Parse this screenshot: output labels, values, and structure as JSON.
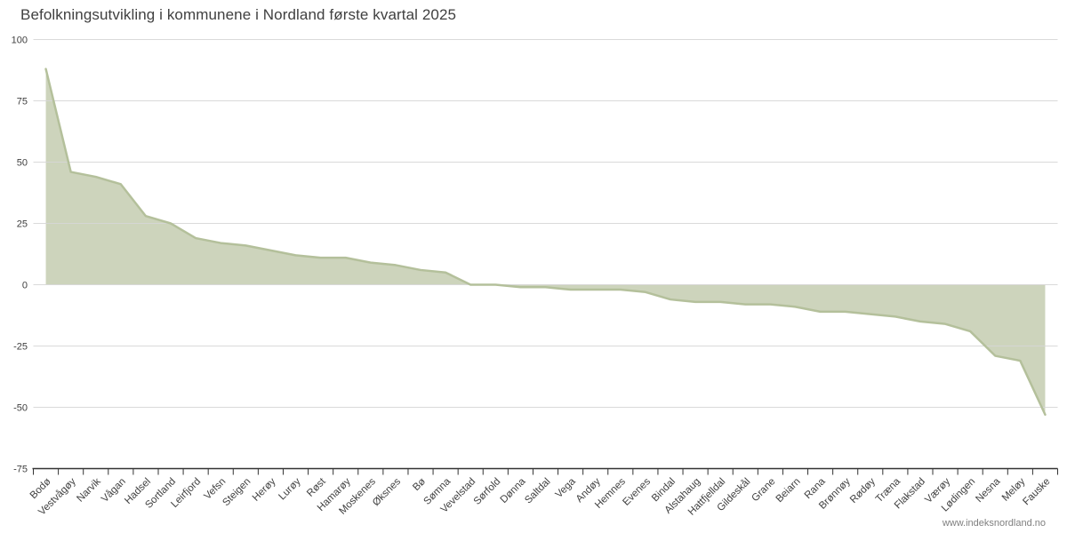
{
  "chart_data": {
    "type": "area",
    "title": "Befolkningsutvikling i kommunene i Nordland første kvartal 2025",
    "xlabel": "",
    "ylabel": "",
    "ylim": [
      -75,
      100
    ],
    "yticks": [
      100,
      75,
      50,
      25,
      0,
      -25,
      -50,
      -75
    ],
    "grid": true,
    "legend": "none",
    "categories": [
      "Bodø",
      "Vestvågøy",
      "Narvik",
      "Vågan",
      "Hadsel",
      "Sortland",
      "Leirfjord",
      "Vefsn",
      "Steigen",
      "Herøy",
      "Lurøy",
      "Røst",
      "Hamarøy",
      "Moskenes",
      "Øksnes",
      "Bø",
      "Sømna",
      "Vevelstad",
      "Sørfold",
      "Dønna",
      "Saltdal",
      "Vega",
      "Andøy",
      "Hemnes",
      "Evenes",
      "Bindal",
      "Alstahaug",
      "Hattfjelldal",
      "Gildeskål",
      "Grane",
      "Beiarn",
      "Rana",
      "Brønnøy",
      "Rødøy",
      "Træna",
      "Flakstad",
      "Værøy",
      "Lødingen",
      "Nesna",
      "Meløy",
      "Fauske"
    ],
    "values": [
      88,
      46,
      44,
      41,
      28,
      25,
      19,
      17,
      16,
      14,
      12,
      11,
      11,
      9,
      8,
      6,
      5,
      0,
      0,
      -1,
      -1,
      -2,
      -2,
      -2,
      -3,
      -6,
      -7,
      -7,
      -8,
      -8,
      -9,
      -11,
      -11,
      -12,
      -13,
      -15,
      -16,
      -19,
      -29,
      -31,
      -53
    ],
    "colors": {
      "area_fill": "#cdd4bc",
      "area_line": "#b4c09b",
      "gridline": "#d6d6d6",
      "axis_line": "#333333",
      "tick_label": "#404040",
      "title": "#404040",
      "credit": "#7f7f7f"
    }
  },
  "footer": {
    "credit": "www.indeksnordland.no"
  }
}
